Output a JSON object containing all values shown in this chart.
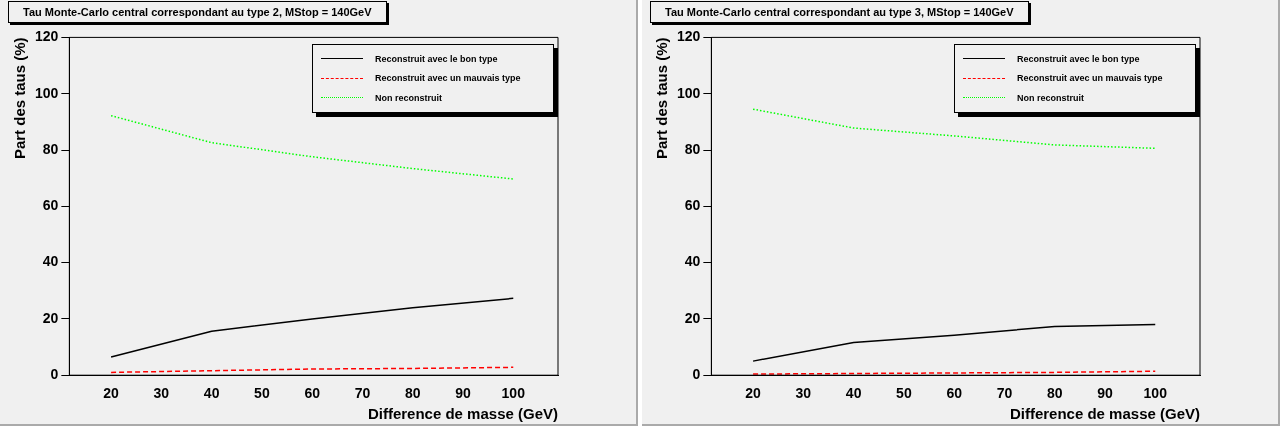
{
  "chart_data": [
    {
      "type": "line",
      "title": "Tau Monte-Carlo central correspondant au type 2, MStop = 140GeV",
      "xlabel": "Difference de masse (GeV)",
      "ylabel": "Part des taus (%)",
      "x": [
        20,
        40,
        60,
        80,
        100
      ],
      "xlim": [
        11.7,
        108.9
      ],
      "xticks": [
        20,
        30,
        40,
        50,
        60,
        70,
        80,
        90,
        100
      ],
      "ylim": [
        0,
        120
      ],
      "yticks": [
        0,
        20,
        40,
        60,
        80,
        100,
        120
      ],
      "legend": "top right",
      "grid": false,
      "marker": "none",
      "series": [
        {
          "name": "Reconstruit avec le bon type",
          "color": "#000000",
          "line_style": "solid",
          "values": [
            6.5,
            15.6,
            20,
            24,
            27.3
          ]
        },
        {
          "name": "Reconstruit avec un mauvais type",
          "color": "#ff0000",
          "line_style": "dashed",
          "values": [
            1,
            1.6,
            2.2,
            2.4,
            2.8
          ]
        },
        {
          "name": "Non reconstruit",
          "color": "#00ff00",
          "line_style": "dotted",
          "values": [
            92.2,
            82.6,
            77.6,
            73.4,
            69.7
          ]
        }
      ]
    },
    {
      "type": "line",
      "title": "Tau Monte-Carlo central correspondant au type 3, MStop = 140GeV",
      "xlabel": "Difference de masse (GeV)",
      "ylabel": "Part des taus (%)",
      "x": [
        20,
        40,
        60,
        80,
        100
      ],
      "xlim": [
        11.7,
        108.9
      ],
      "xticks": [
        20,
        30,
        40,
        50,
        60,
        70,
        80,
        90,
        100
      ],
      "ylim": [
        0,
        120
      ],
      "yticks": [
        0,
        20,
        40,
        60,
        80,
        100,
        120
      ],
      "legend": "top right",
      "grid": false,
      "marker": "none",
      "series": [
        {
          "name": "Reconstruit avec le bon type",
          "color": "#000000",
          "line_style": "solid",
          "values": [
            5,
            11.6,
            14.2,
            17.3,
            18
          ]
        },
        {
          "name": "Reconstruit avec un mauvais type",
          "color": "#ff0000",
          "line_style": "dashed",
          "values": [
            0.4,
            0.6,
            0.8,
            1,
            1.4
          ]
        },
        {
          "name": "Non reconstruit",
          "color": "#00ff00",
          "line_style": "dotted",
          "values": [
            94.5,
            87.8,
            85,
            81.8,
            80.6
          ]
        }
      ]
    }
  ]
}
